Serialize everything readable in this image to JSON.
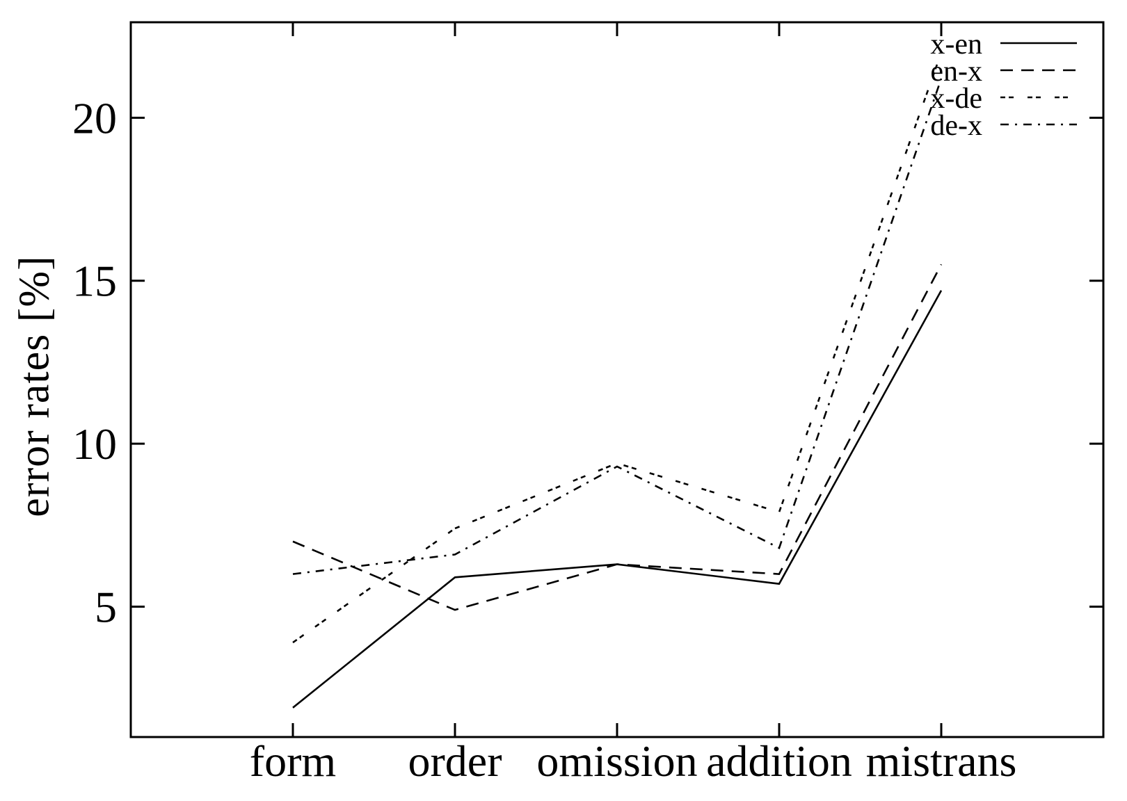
{
  "chart_data": {
    "type": "line",
    "title": "",
    "xlabel": "",
    "ylabel": "error rates [%]",
    "categories": [
      "form",
      "order",
      "omission",
      "addition",
      "mistrans"
    ],
    "y_ticks": [
      5,
      10,
      15,
      20
    ],
    "ylim": [
      1,
      22.93
    ],
    "grid": false,
    "legend_position": "top-right",
    "line_color": "#000000",
    "background_color": "#ffffff",
    "series": [
      {
        "name": "x-en",
        "line_style": "solid",
        "values": [
          1.9,
          5.9,
          6.3,
          5.7,
          14.7
        ]
      },
      {
        "name": "en-x",
        "line_style": "long-dash",
        "values": [
          7.0,
          4.9,
          6.3,
          6.0,
          15.5
        ]
      },
      {
        "name": "x-de",
        "line_style": "double-dash",
        "values": [
          3.9,
          7.4,
          9.4,
          7.9,
          22.0
        ]
      },
      {
        "name": "de-x",
        "line_style": "dash-dot",
        "values": [
          6.0,
          6.6,
          9.3,
          6.8,
          21.2
        ]
      }
    ]
  }
}
